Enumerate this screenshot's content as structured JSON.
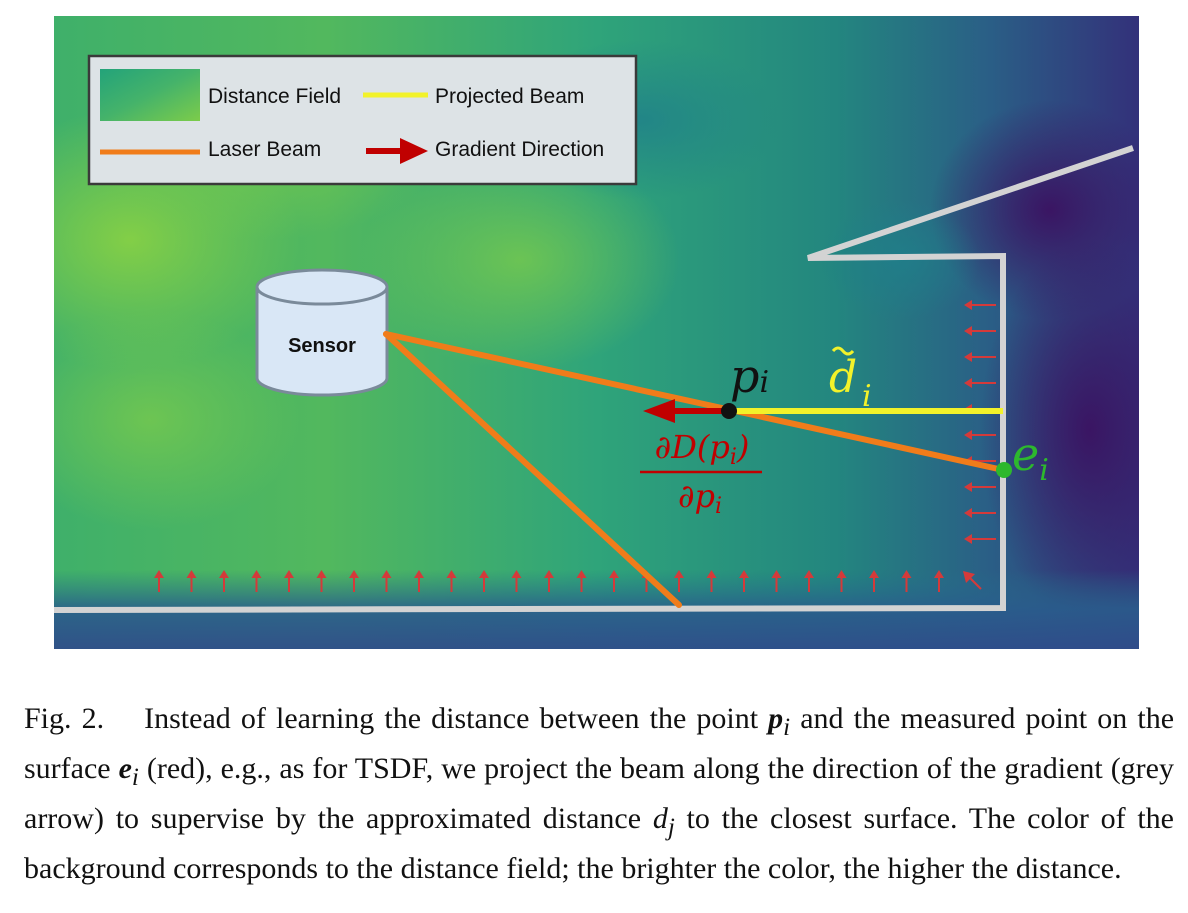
{
  "legend": {
    "distance_field": "Distance Field",
    "projected_beam": "Projected Beam",
    "laser_beam": "Laser Beam",
    "gradient_direction": "Gradient Direction"
  },
  "sensor_label": "Sensor",
  "math": {
    "p_base": "p",
    "p_sub": "i",
    "d_base": "d",
    "d_sub": "i",
    "e_base": "e",
    "e_sub": "i",
    "grad_numerator": "∂D(p",
    "grad_numerator_sub": "i",
    "grad_numerator_close": ")",
    "grad_denominator": "∂p",
    "grad_denominator_sub": "i"
  },
  "colors": {
    "laser_beam": "#f07c1a",
    "projected_beam": "#f2f22a",
    "gradient_arrow": "#c00000",
    "small_arrows": "#d43a3a",
    "wall": "#d3d3d3",
    "endpoint": "#2db82d",
    "sensor_fill": "#d9e7f6",
    "field_bright": "#7ccc4a",
    "field_mid": "#2a9d7a",
    "field_dark": "#3a1e6e"
  },
  "caption": {
    "label": "Fig. 2.",
    "part1": "Instead of learning the distance between the point ",
    "p": "p",
    "p_sub": "i",
    "part2": " and the measured point on the surface ",
    "e": "e",
    "e_sub": "i",
    "part3": " (red), e.g., as for TSDF, we project the beam along the direction of the gradient (grey arrow) to supervise by the approximated distance ",
    "d": "d",
    "d_sub": "j",
    "part4": " to the closest surface. The color of the background corresponds to the distance field; the brighter the color, the higher the distance."
  }
}
